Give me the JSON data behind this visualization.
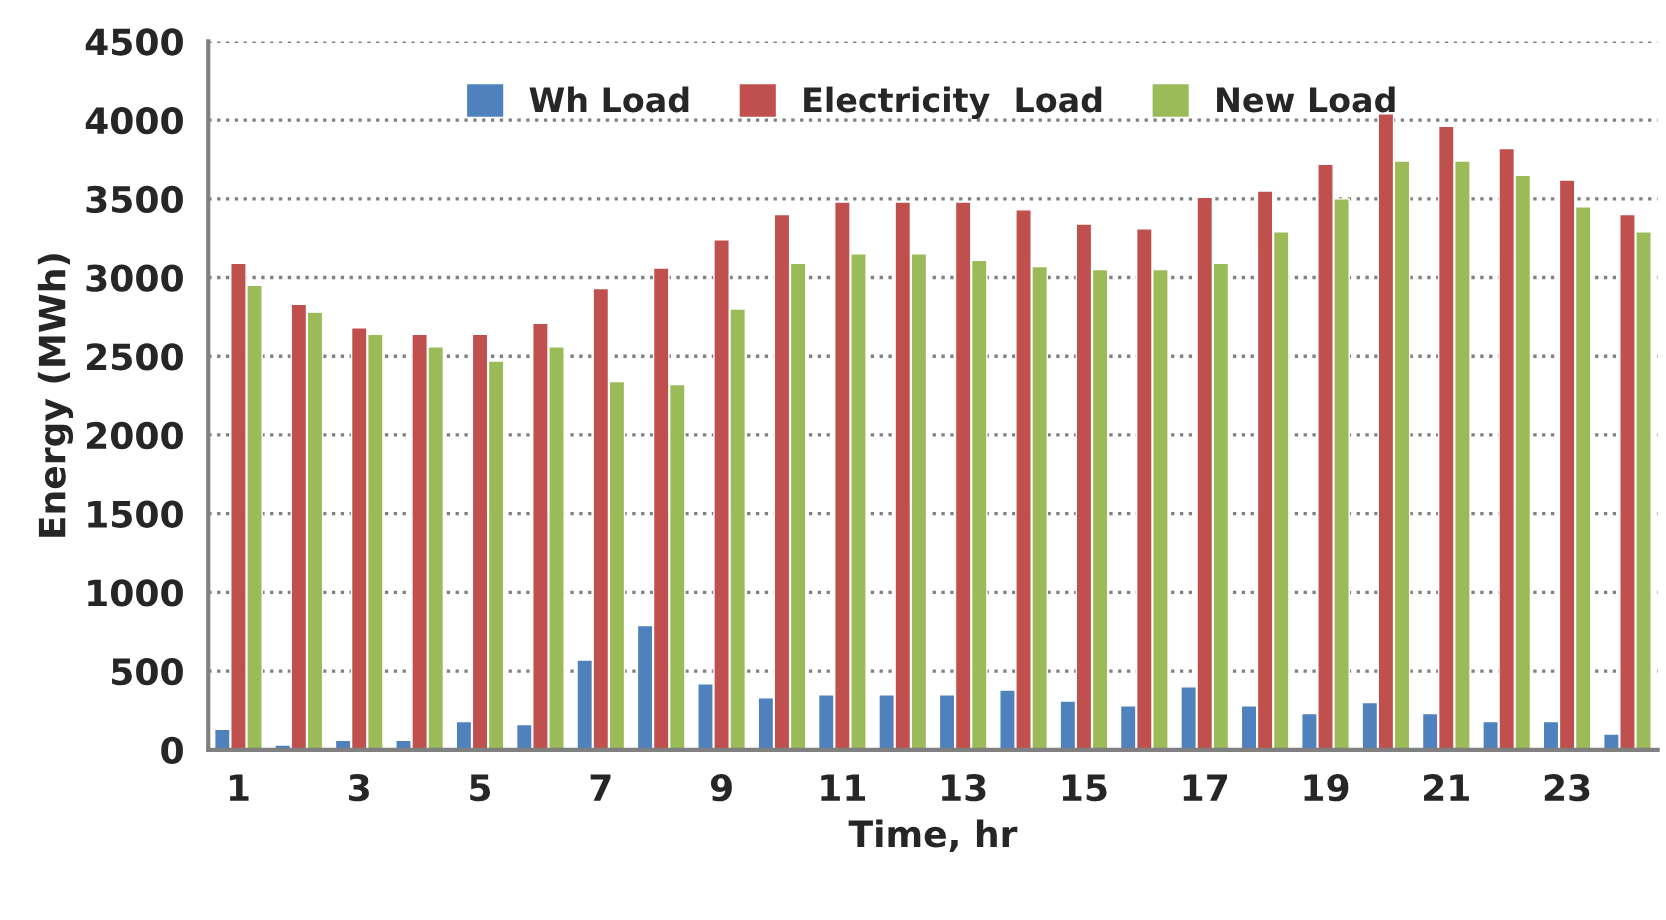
{
  "chart_data": {
    "type": "bar",
    "xlabel": "Time, hr",
    "ylabel": "Energy (MWh)",
    "categories": [
      "1",
      null,
      "3",
      null,
      "5",
      null,
      "7",
      null,
      "9",
      null,
      "11",
      null,
      "13",
      null,
      "15",
      null,
      "17",
      null,
      "19",
      null,
      "21",
      null,
      "23",
      null
    ],
    "series": [
      {
        "name": "Wh Load",
        "color": "#4f81bd",
        "values": [
          130,
          30,
          60,
          60,
          180,
          160,
          570,
          790,
          420,
          330,
          350,
          350,
          350,
          380,
          310,
          280,
          400,
          280,
          230,
          300,
          230,
          180,
          180,
          100
        ]
      },
      {
        "name": "Electricity  Load",
        "color": "#c0504d",
        "values": [
          3090,
          2830,
          2680,
          2640,
          2640,
          2710,
          2930,
          3060,
          3240,
          3400,
          3480,
          3480,
          3480,
          3430,
          3340,
          3310,
          3510,
          3550,
          3720,
          4040,
          3960,
          3820,
          3620,
          3400
        ]
      },
      {
        "name": "New Load",
        "color": "#9bbb59",
        "values": [
          2950,
          2780,
          2640,
          2560,
          2470,
          2560,
          2340,
          2320,
          2800,
          3090,
          3150,
          3150,
          3110,
          3070,
          3050,
          3050,
          3090,
          3290,
          3500,
          3740,
          3740,
          3650,
          3450,
          3290
        ]
      }
    ],
    "ylim": [
      0,
      4500
    ],
    "yticks": [
      0,
      500,
      1000,
      1500,
      2000,
      2500,
      3000,
      3500,
      4000,
      4500
    ],
    "grid": "y",
    "legend": "top"
  }
}
